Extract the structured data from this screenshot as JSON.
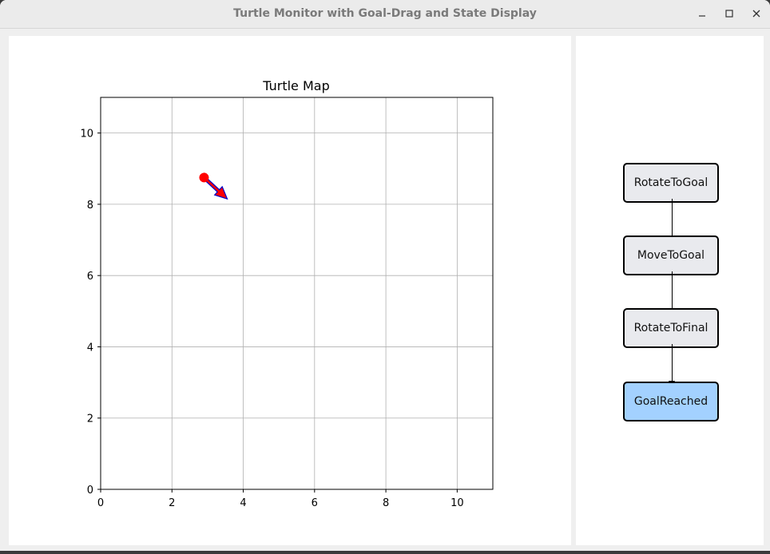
{
  "window": {
    "title": "Turtle Monitor with Goal-Drag and State Display",
    "minimize_label": "—",
    "maximize_label": "☐",
    "close_label": "✕"
  },
  "map": {
    "title": "Turtle Map",
    "xlim": [
      0,
      11
    ],
    "ylim": [
      0,
      11
    ],
    "x_ticks": [
      "0",
      "2",
      "4",
      "6",
      "8",
      "10"
    ],
    "y_ticks": [
      "0",
      "2",
      "4",
      "6",
      "8",
      "10"
    ],
    "grid": true,
    "turtle": {
      "x": 2.9,
      "y": 8.75,
      "color": "#ff0000"
    },
    "heading_arrow": {
      "from_x": 2.9,
      "from_y": 8.75,
      "to_x": 3.55,
      "to_y": 8.15,
      "fill": "#ff0000",
      "edge": "#0000cc"
    }
  },
  "state_machine": {
    "states": [
      {
        "label": "RotateToGoal",
        "active": false
      },
      {
        "label": "MoveToGoal",
        "active": false
      },
      {
        "label": "RotateToFinal",
        "active": false
      },
      {
        "label": "GoalReached",
        "active": true
      }
    ],
    "inactive_color": "#e9eaee",
    "active_color": "#a3d1ff"
  }
}
